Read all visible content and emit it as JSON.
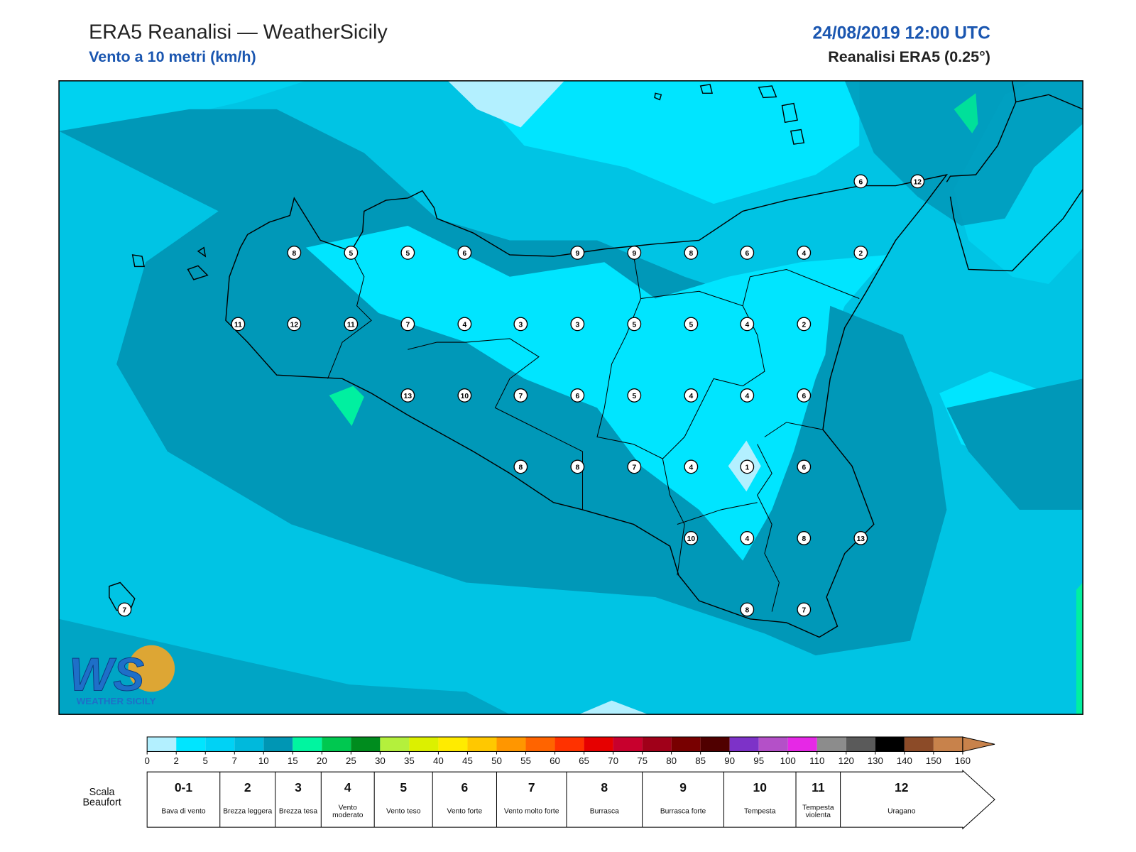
{
  "header": {
    "title": "ERA5 Reanalisi — WeatherSicily",
    "subtitle": "Vento a 10 metri (km/h)",
    "datetime": "24/08/2019 12:00 UTC",
    "source": "Reanalisi ERA5 (0.25°)"
  },
  "logo": {
    "text": "WS",
    "caption": "WEATHER SICILY"
  },
  "map": {
    "stations": [
      8,
      5,
      5,
      6,
      9,
      9,
      8,
      6,
      4,
      2,
      11,
      12,
      11,
      7,
      4,
      3,
      3,
      5,
      5,
      4,
      2,
      13,
      10,
      7,
      6,
      5,
      4,
      4,
      6,
      8,
      8,
      7,
      4,
      1,
      6,
      10,
      4,
      8,
      13,
      8,
      7,
      6,
      12,
      7
    ]
  },
  "colorbar": {
    "ticks": [
      0,
      2,
      5,
      7,
      10,
      15,
      20,
      25,
      30,
      35,
      40,
      45,
      50,
      55,
      60,
      65,
      70,
      75,
      80,
      85,
      90,
      95,
      100,
      110,
      120,
      130,
      140,
      150,
      160
    ],
    "colors": [
      "#b3f0ff",
      "#00e5ff",
      "#00d2f5",
      "#00b9dc",
      "#0096b4",
      "#00f5a0",
      "#00c850",
      "#008c1e",
      "#b4f03c",
      "#dcf000",
      "#ffeb00",
      "#ffc800",
      "#ff9600",
      "#ff6400",
      "#ff3200",
      "#e60000",
      "#c8002d",
      "#a00019",
      "#780000",
      "#500000",
      "#7d32c8",
      "#b450c8",
      "#e628e6",
      "#8c8c8c",
      "#5a5a5a",
      "#000000",
      "#8c4b28",
      "#c8824b"
    ]
  },
  "beaufort": {
    "title": "Scala Beaufort",
    "levels": [
      {
        "force": "0-1",
        "label": "Bava di vento"
      },
      {
        "force": "2",
        "label": "Brezza leggera"
      },
      {
        "force": "3",
        "label": "Brezza tesa"
      },
      {
        "force": "4",
        "label": "Vento moderato"
      },
      {
        "force": "5",
        "label": "Vento teso"
      },
      {
        "force": "6",
        "label": "Vento forte"
      },
      {
        "force": "7",
        "label": "Vento molto forte"
      },
      {
        "force": "8",
        "label": "Burrasca"
      },
      {
        "force": "9",
        "label": "Burrasca forte"
      },
      {
        "force": "10",
        "label": "Tempesta"
      },
      {
        "force": "11",
        "label": "Tempesta violenta"
      },
      {
        "force": "12",
        "label": "Uragano"
      }
    ]
  }
}
